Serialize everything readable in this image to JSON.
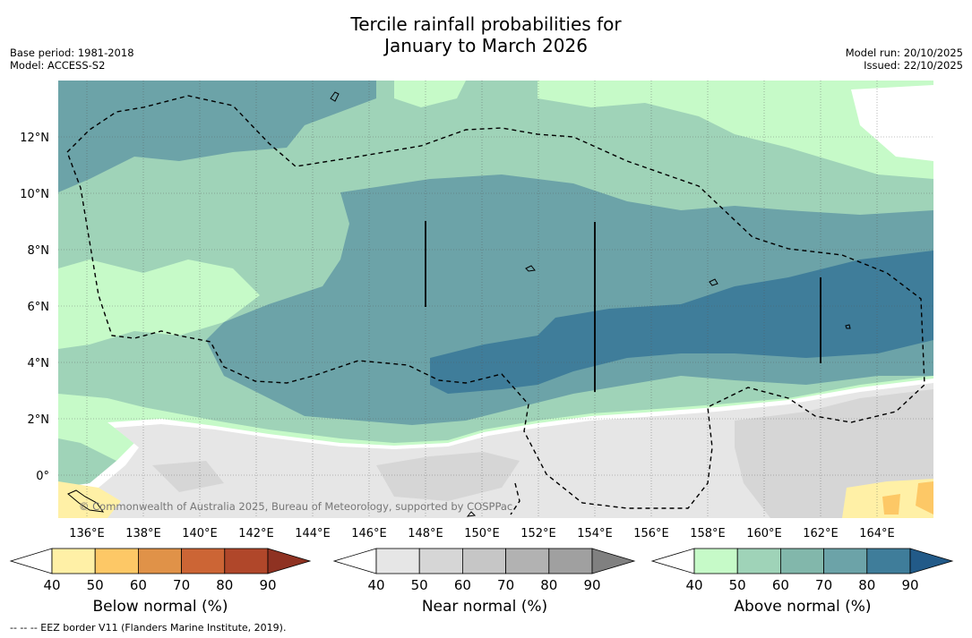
{
  "title": {
    "line1": "Tercile rainfall probabilities for",
    "line2": "January to March 2026"
  },
  "meta_left": {
    "base_period": "Base period: 1981-2018",
    "model": "Model: ACCESS-S2"
  },
  "meta_right": {
    "model_run": "Model run: 20/10/2025",
    "issued": "Issued: 22/10/2025"
  },
  "map": {
    "lon_labels": [
      "136°E",
      "138°E",
      "140°E",
      "142°E",
      "144°E",
      "146°E",
      "148°E",
      "150°E",
      "152°E",
      "154°E",
      "156°E",
      "158°E",
      "160°E",
      "162°E",
      "164°E"
    ],
    "lat_labels": [
      "12°N",
      "10°N",
      "8°N",
      "6°N",
      "4°N",
      "2°N",
      "0°"
    ],
    "copyright": "© Commonwealth of Australia 2025, Bureau of Meteorology, supported by COSPPac",
    "lon_range": [
      135,
      166
    ],
    "lat_range": [
      -1.5,
      14
    ]
  },
  "colorbars": [
    {
      "title": "Below normal (%)",
      "ticks": [
        "40",
        "50",
        "60",
        "70",
        "80",
        "90"
      ],
      "colors": [
        "#fff0a6",
        "#fdc866",
        "#e09248",
        "#cc6535",
        "#b0472a",
        "#8f3222"
      ]
    },
    {
      "title": "Near normal (%)",
      "ticks": [
        "40",
        "50",
        "60",
        "70",
        "80",
        "90"
      ],
      "colors": [
        "#e6e6e6",
        "#d6d6d6",
        "#c6c6c6",
        "#b2b2b2",
        "#a0a0a0",
        "#808080"
      ]
    },
    {
      "title": "Above normal (%)",
      "ticks": [
        "40",
        "50",
        "60",
        "70",
        "80",
        "90"
      ],
      "colors": [
        "#c6fac8",
        "#9fd3b8",
        "#82b7ab",
        "#6ca3a8",
        "#3f7d9a",
        "#225a88"
      ]
    }
  ],
  "footnote": "--  --  -- EEZ border V11 (Flanders Marine Institute, 2019).",
  "colors": {
    "above_40": "#c6fac8",
    "above_50": "#9fd3b8",
    "above_60": "#6ca3a8",
    "above_70": "#3f7d9a",
    "near_40": "#e6e6e6",
    "near_50": "#d6d6d6",
    "below_40": "#fff0a6",
    "below_50": "#fdc866"
  }
}
